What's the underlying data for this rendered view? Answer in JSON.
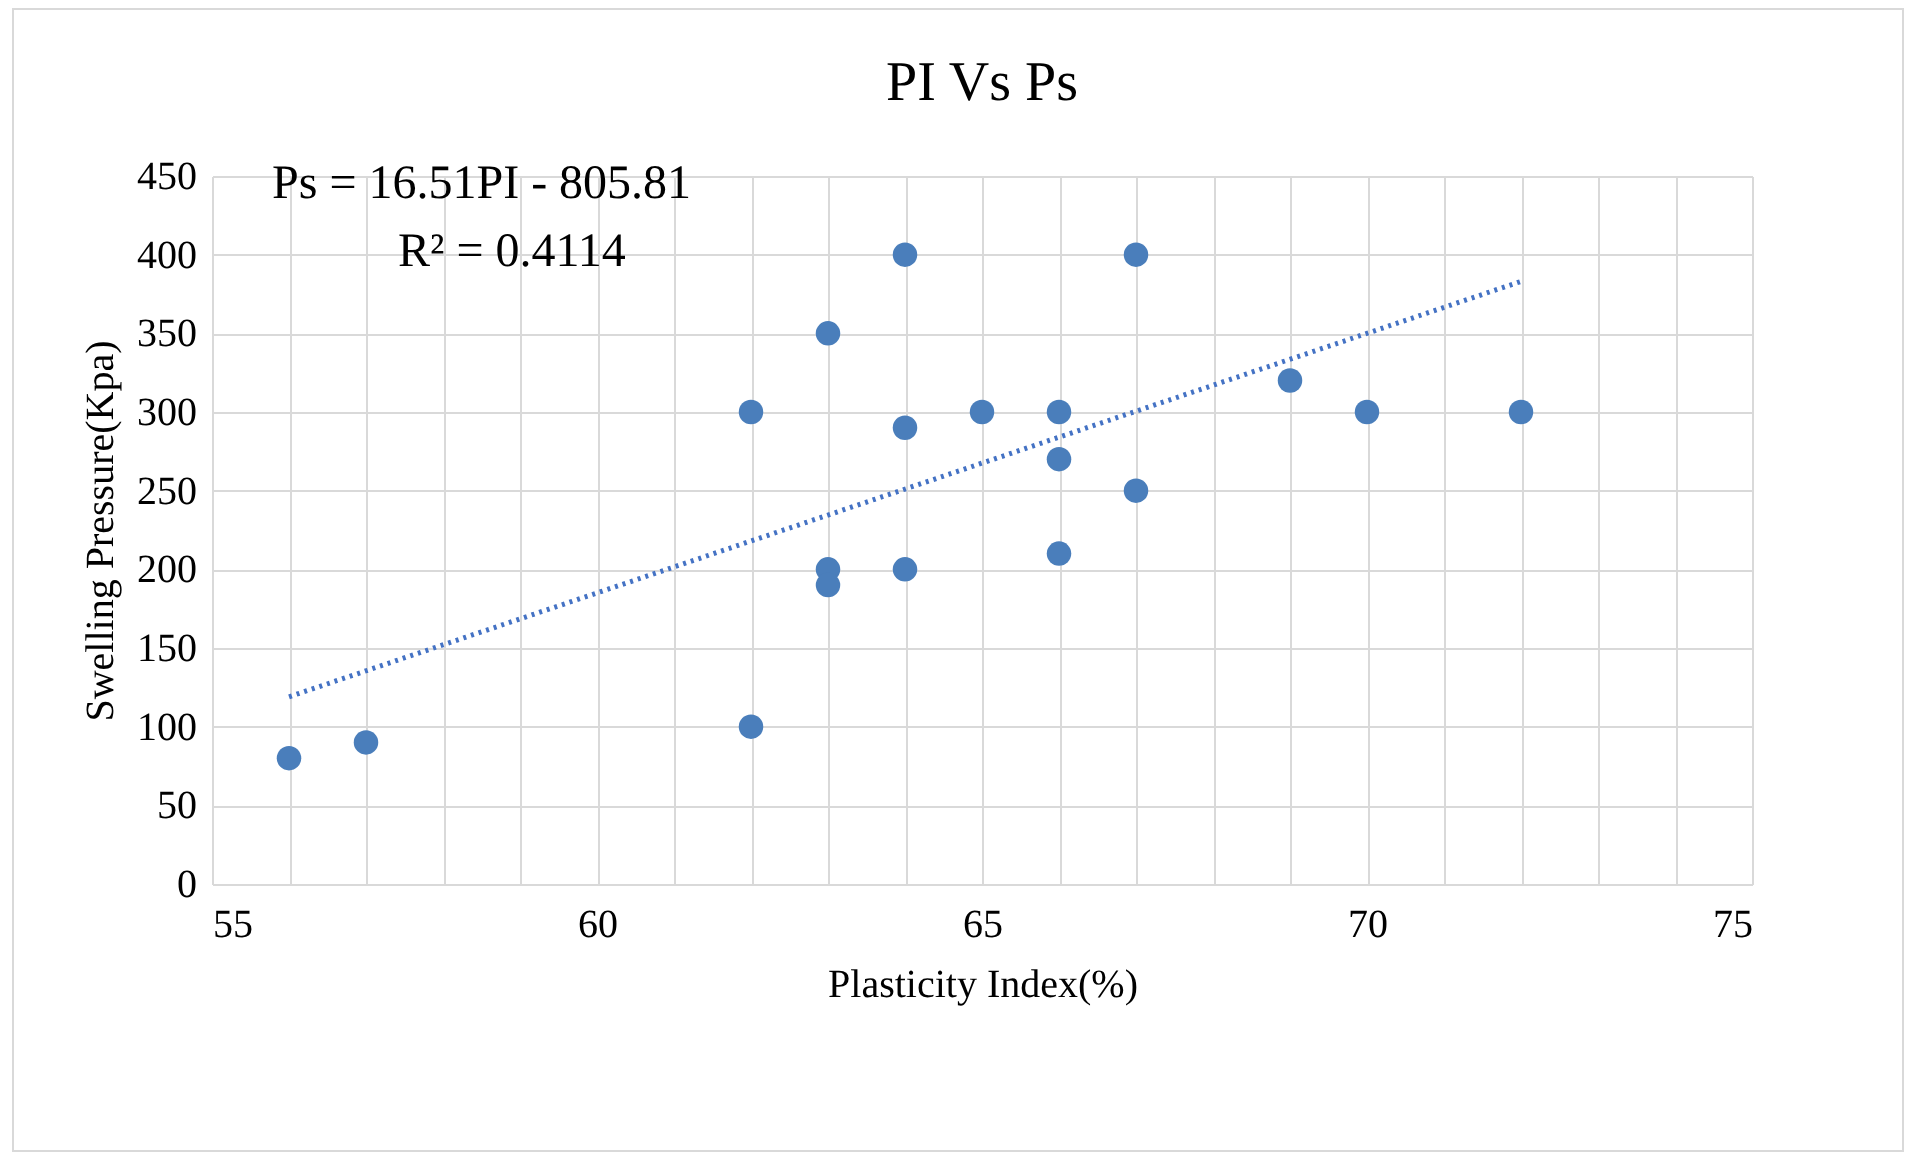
{
  "chart_data": {
    "type": "scatter",
    "title": "PI Vs Ps",
    "xlabel": "Plasticity Index(%)",
    "ylabel": "Swelling Pressure(Kpa)",
    "annotations": [
      "Ps = 16.51PI - 805.81",
      "R² = 0.4114"
    ],
    "series": [
      {
        "type": "scatter",
        "color": "#4a7ebb",
        "marker": "circle",
        "x": [
          56,
          57,
          62,
          62,
          63,
          63,
          63,
          64,
          64,
          64,
          65,
          66,
          66,
          66,
          67,
          67,
          69,
          70,
          72
        ],
        "values": [
          80,
          90,
          100,
          300,
          350,
          200,
          190,
          400,
          290,
          200,
          300,
          300,
          270,
          210,
          400,
          250,
          320,
          300,
          300
        ]
      },
      {
        "type": "line",
        "color": "#4472c4",
        "line_style": "dotted",
        "x": [
          56,
          72
        ],
        "values": [
          119,
          383
        ]
      }
    ],
    "grid": true,
    "legend": false,
    "xlim": [
      55,
      75
    ],
    "xticks": [
      55,
      {
        "value": 56,
        "label": null
      },
      {
        "value": 57,
        "label": null
      },
      {
        "value": 58,
        "label": null
      },
      {
        "value": 59,
        "label": null
      },
      60,
      {
        "value": 61,
        "label": null
      },
      {
        "value": 62,
        "label": null
      },
      {
        "value": 63,
        "label": null
      },
      {
        "value": 64,
        "label": null
      },
      65,
      {
        "value": 66,
        "label": null
      },
      {
        "value": 67,
        "label": null
      },
      {
        "value": 68,
        "label": null
      },
      {
        "value": 69,
        "label": null
      },
      70,
      {
        "value": 71,
        "label": null
      },
      {
        "value": 72,
        "label": null
      },
      {
        "value": 73,
        "label": null
      },
      {
        "value": 74,
        "label": null
      },
      75
    ],
    "ylim": [
      0,
      450
    ],
    "yticks": [
      0,
      50,
      100,
      150,
      200,
      250,
      300,
      350,
      400,
      450
    ]
  }
}
